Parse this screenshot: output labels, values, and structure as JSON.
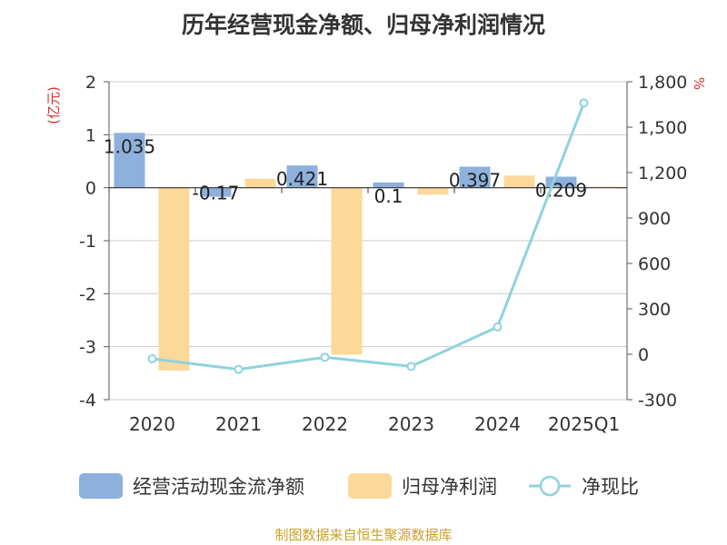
{
  "title": "历年经营现金净额、归母净利润情况",
  "source": "制图数据来自恒生聚源数据库",
  "chart_data": {
    "type": "bar",
    "categories": [
      "2020",
      "2021",
      "2022",
      "2023",
      "2024",
      "2025Q1"
    ],
    "y_left": {
      "unit": "(亿元)",
      "min": -4,
      "max": 2,
      "ticks": [
        "2",
        "1",
        "0",
        "-1",
        "-2",
        "-3",
        "-4"
      ]
    },
    "y_right": {
      "unit": "%",
      "min": -300,
      "max": 1800,
      "ticks": [
        "1,800",
        "1,500",
        "1,200",
        "900",
        "600",
        "300",
        "0",
        "-300"
      ]
    },
    "series": [
      {
        "name": "经营活动现金流净额",
        "type": "bar",
        "axis": "left",
        "color": "#8eb0dc",
        "values": [
          1.035,
          -0.17,
          0.421,
          0.1,
          0.397,
          0.209
        ],
        "labels": [
          "1.035",
          "-0.17",
          "0.421",
          "0.1",
          "0.397",
          "0.209"
        ]
      },
      {
        "name": "归母净利润",
        "type": "bar",
        "axis": "left",
        "color": "#fdd89b",
        "values": [
          -3.45,
          0.17,
          -3.15,
          -0.13,
          0.23,
          0.02
        ]
      },
      {
        "name": "净现比",
        "type": "line",
        "axis": "right",
        "color": "#8fd3dc",
        "values": [
          -30,
          -100,
          -20,
          -80,
          180,
          1660
        ]
      }
    ],
    "grid": true,
    "legend": "bottom"
  }
}
